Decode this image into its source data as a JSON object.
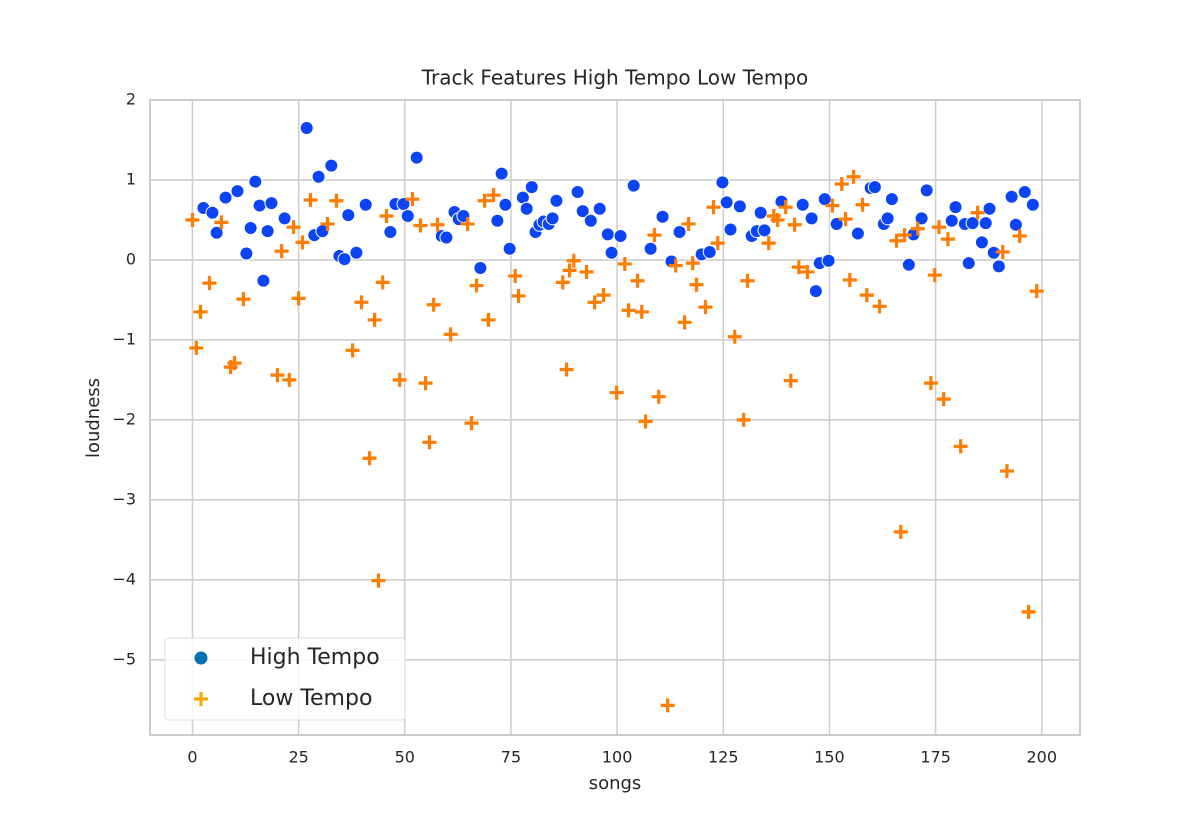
{
  "chart_data": {
    "type": "scatter",
    "title": "Track Features High Tempo Low Tempo",
    "xlabel": "songs",
    "ylabel": "loudness",
    "xlim": [
      -10,
      209
    ],
    "ylim": [
      -5.94,
      2.0
    ],
    "xticks": [
      0,
      25,
      50,
      75,
      100,
      125,
      150,
      175,
      200
    ],
    "yticks": [
      {
        "value": -5,
        "label": "−5"
      },
      {
        "value": -4,
        "label": "−4"
      },
      {
        "value": -3,
        "label": "−3"
      },
      {
        "value": -2,
        "label": "−2"
      },
      {
        "value": -1,
        "label": "−1"
      },
      0,
      1,
      2
    ],
    "grid": true,
    "legend": "lower left",
    "series": [
      {
        "name": "High Tempo",
        "color": "#0b44f5",
        "legend_color": "#0173b2",
        "marker": "circle",
        "x": [
          2.6,
          4.7,
          5.7,
          7.8,
          10.6,
          12.7,
          13.7,
          14.8,
          15.8,
          16.7,
          17.7,
          18.6,
          21.7,
          26.9,
          28.7,
          29.7,
          30.6,
          32.7,
          34.6,
          35.8,
          36.7,
          38.6,
          40.8,
          46.6,
          47.8,
          49.7,
          50.7,
          52.8,
          58.7,
          59.8,
          61.7,
          62.7,
          63.8,
          67.8,
          71.8,
          72.8,
          73.7,
          74.7,
          77.8,
          78.7,
          79.9,
          80.8,
          81.7,
          82.7,
          83.9,
          84.8,
          85.7,
          90.7,
          91.9,
          93.8,
          95.9,
          97.8,
          98.7,
          100.8,
          103.9,
          107.9,
          110.7,
          112.8,
          114.7,
          119.9,
          121.8,
          124.8,
          125.8,
          126.7,
          128.9,
          131.7,
          132.9,
          133.8,
          134.7,
          138.7,
          143.7,
          145.8,
          146.8,
          147.7,
          148.9,
          149.8,
          151.7,
          156.7,
          159.7,
          160.7,
          162.8,
          163.7,
          164.7,
          168.7,
          169.8,
          171.7,
          172.9,
          178.8,
          179.7,
          181.9,
          182.8,
          183.7,
          185.9,
          186.8,
          187.7,
          188.7,
          189.9,
          192.9,
          193.9,
          196.0,
          197.9
        ],
        "values": [
          0.65,
          0.59,
          0.34,
          0.78,
          0.86,
          0.08,
          0.4,
          0.98,
          0.68,
          -0.26,
          0.36,
          0.71,
          0.52,
          1.65,
          0.31,
          1.04,
          0.36,
          1.18,
          0.05,
          0.01,
          0.56,
          0.09,
          0.69,
          0.35,
          0.7,
          0.7,
          0.55,
          1.28,
          0.3,
          0.28,
          0.6,
          0.51,
          0.55,
          -0.1,
          0.49,
          1.08,
          0.69,
          0.14,
          0.78,
          0.64,
          0.91,
          0.35,
          0.44,
          0.48,
          0.45,
          0.52,
          0.74,
          0.85,
          0.61,
          0.49,
          0.64,
          0.32,
          0.09,
          0.3,
          0.93,
          0.14,
          0.54,
          -0.02,
          0.35,
          0.07,
          0.1,
          0.97,
          0.72,
          0.38,
          0.67,
          0.3,
          0.36,
          0.59,
          0.37,
          0.73,
          0.69,
          0.52,
          -0.39,
          -0.04,
          0.76,
          -0.01,
          0.45,
          0.33,
          0.9,
          0.91,
          0.45,
          0.52,
          0.76,
          -0.06,
          0.32,
          0.52,
          0.87,
          0.49,
          0.66,
          0.45,
          -0.04,
          0.46,
          0.22,
          0.46,
          0.64,
          0.09,
          -0.08,
          0.79,
          0.44,
          0.85,
          0.69
        ]
      },
      {
        "name": "Low Tempo",
        "color": "#ff7c00",
        "legend_color": "#f5a800",
        "marker": "plus",
        "x": [
          0,
          0.9,
          1.9,
          4.0,
          6.8,
          9.0,
          9.9,
          12.0,
          20.0,
          21.0,
          22.8,
          23.8,
          25.0,
          25.9,
          27.8,
          31.8,
          33.9,
          37.7,
          39.8,
          41.7,
          42.9,
          43.8,
          44.8,
          45.7,
          48.8,
          51.8,
          53.7,
          54.9,
          55.8,
          56.8,
          57.7,
          60.8,
          64.8,
          65.7,
          66.9,
          68.8,
          69.7,
          70.9,
          76.0,
          76.8,
          87.2,
          88.1,
          88.8,
          89.8,
          92.8,
          94.7,
          96.8,
          99.9,
          101.8,
          102.7,
          104.8,
          105.8,
          106.7,
          108.8,
          109.8,
          111.9,
          113.8,
          115.9,
          116.8,
          117.8,
          118.7,
          120.8,
          122.7,
          123.7,
          127.7,
          129.8,
          130.7,
          135.7,
          136.9,
          137.8,
          139.7,
          140.9,
          141.8,
          142.8,
          144.8,
          150.7,
          152.9,
          153.8,
          154.8,
          155.7,
          157.8,
          158.8,
          161.8,
          165.8,
          166.8,
          167.7,
          170.8,
          173.9,
          174.8,
          175.8,
          176.9,
          177.9,
          180.9,
          184.9,
          190.8,
          191.8,
          194.8,
          196.9,
          198.8
        ],
        "values": [
          0.5,
          -1.1,
          -0.65,
          -0.29,
          0.47,
          -1.34,
          -1.29,
          -0.49,
          -1.44,
          0.11,
          -1.5,
          0.41,
          -0.48,
          0.22,
          0.75,
          0.45,
          0.74,
          -1.13,
          -0.53,
          -2.48,
          -0.75,
          -4.01,
          -0.28,
          0.55,
          -1.5,
          0.76,
          0.43,
          -1.54,
          -2.28,
          -0.56,
          0.44,
          -0.93,
          0.45,
          -2.04,
          -0.32,
          0.74,
          -0.75,
          0.81,
          -0.2,
          -0.45,
          -0.28,
          -1.37,
          -0.13,
          -0.01,
          -0.15,
          -0.53,
          -0.44,
          -1.66,
          -0.05,
          -0.63,
          -0.26,
          -0.65,
          -2.02,
          0.31,
          -1.71,
          -5.57,
          -0.07,
          -0.78,
          0.45,
          -0.04,
          -0.31,
          -0.59,
          0.66,
          0.21,
          -0.96,
          -2.0,
          -0.26,
          0.21,
          0.55,
          0.5,
          0.66,
          -1.51,
          0.44,
          -0.09,
          -0.15,
          0.68,
          0.95,
          0.51,
          -0.25,
          1.04,
          0.69,
          -0.44,
          -0.58,
          0.24,
          -3.4,
          0.31,
          0.39,
          -1.54,
          -0.19,
          0.41,
          -1.74,
          0.26,
          -2.33,
          0.59,
          0.1,
          -2.64,
          0.3,
          -4.4,
          -0.39
        ]
      }
    ]
  }
}
